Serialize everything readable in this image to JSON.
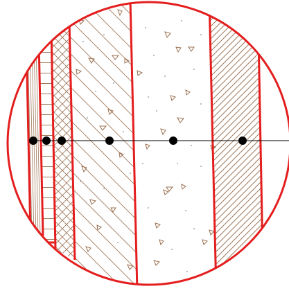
{
  "diagram": {
    "type": "wall-section-detail",
    "colors": {
      "outline": "#e41e1e",
      "hatch": "#a0785a",
      "aggregate": "#9b7050",
      "speckle": "#8c8c8c",
      "axis": "#000000",
      "marker": "#000000",
      "background": "#ffffff"
    },
    "layers": [
      {
        "name": "timber-grain",
        "pattern": "wood-grain"
      },
      {
        "name": "brick-courses",
        "pattern": "horizontal-lines"
      },
      {
        "name": "insulation",
        "pattern": "cross-hatch"
      },
      {
        "name": "concrete-diagonal",
        "pattern": "diagonal-with-aggregate"
      },
      {
        "name": "plain-concrete",
        "pattern": "speckled-aggregate"
      },
      {
        "name": "timber-diagonal-grain",
        "pattern": "dense-diagonal-grain"
      },
      {
        "name": "air-gap",
        "pattern": "none"
      }
    ],
    "markers": 6
  }
}
